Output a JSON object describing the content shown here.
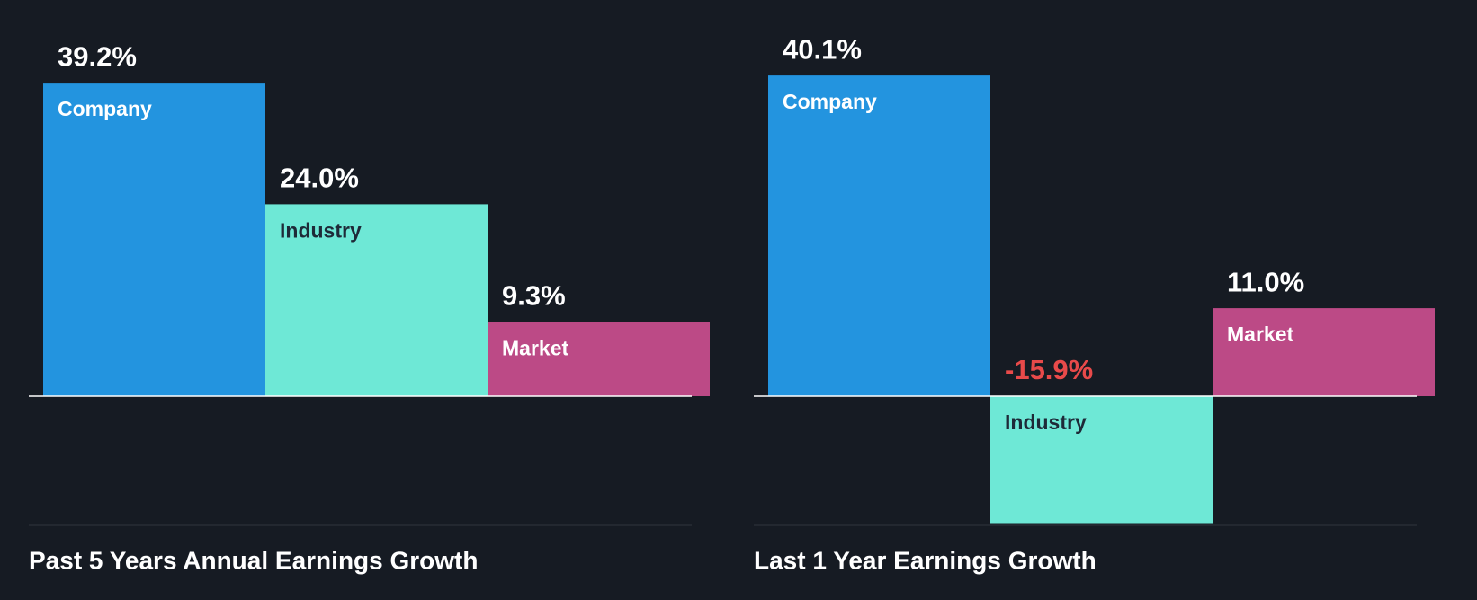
{
  "chart_data": [
    {
      "type": "bar",
      "title": "Past 5 Years Annual Earnings Growth",
      "categories": [
        "Company",
        "Industry",
        "Market"
      ],
      "values": [
        39.2,
        24.0,
        9.3
      ],
      "value_labels": [
        "39.2%",
        "24.0%",
        "9.3%"
      ],
      "colors": [
        "#2394df",
        "#6ee8d6",
        "#bc4a86"
      ],
      "negative_color": "#e84a4a",
      "ylim": [
        -16,
        45
      ]
    },
    {
      "type": "bar",
      "title": "Last 1 Year Earnings Growth",
      "categories": [
        "Company",
        "Industry",
        "Market"
      ],
      "values": [
        40.1,
        -15.9,
        11.0
      ],
      "value_labels": [
        "40.1%",
        "-15.9%",
        "11.0%"
      ],
      "colors": [
        "#2394df",
        "#6ee8d6",
        "#bc4a86"
      ],
      "negative_color": "#e84a4a",
      "ylim": [
        -16,
        45
      ]
    }
  ]
}
